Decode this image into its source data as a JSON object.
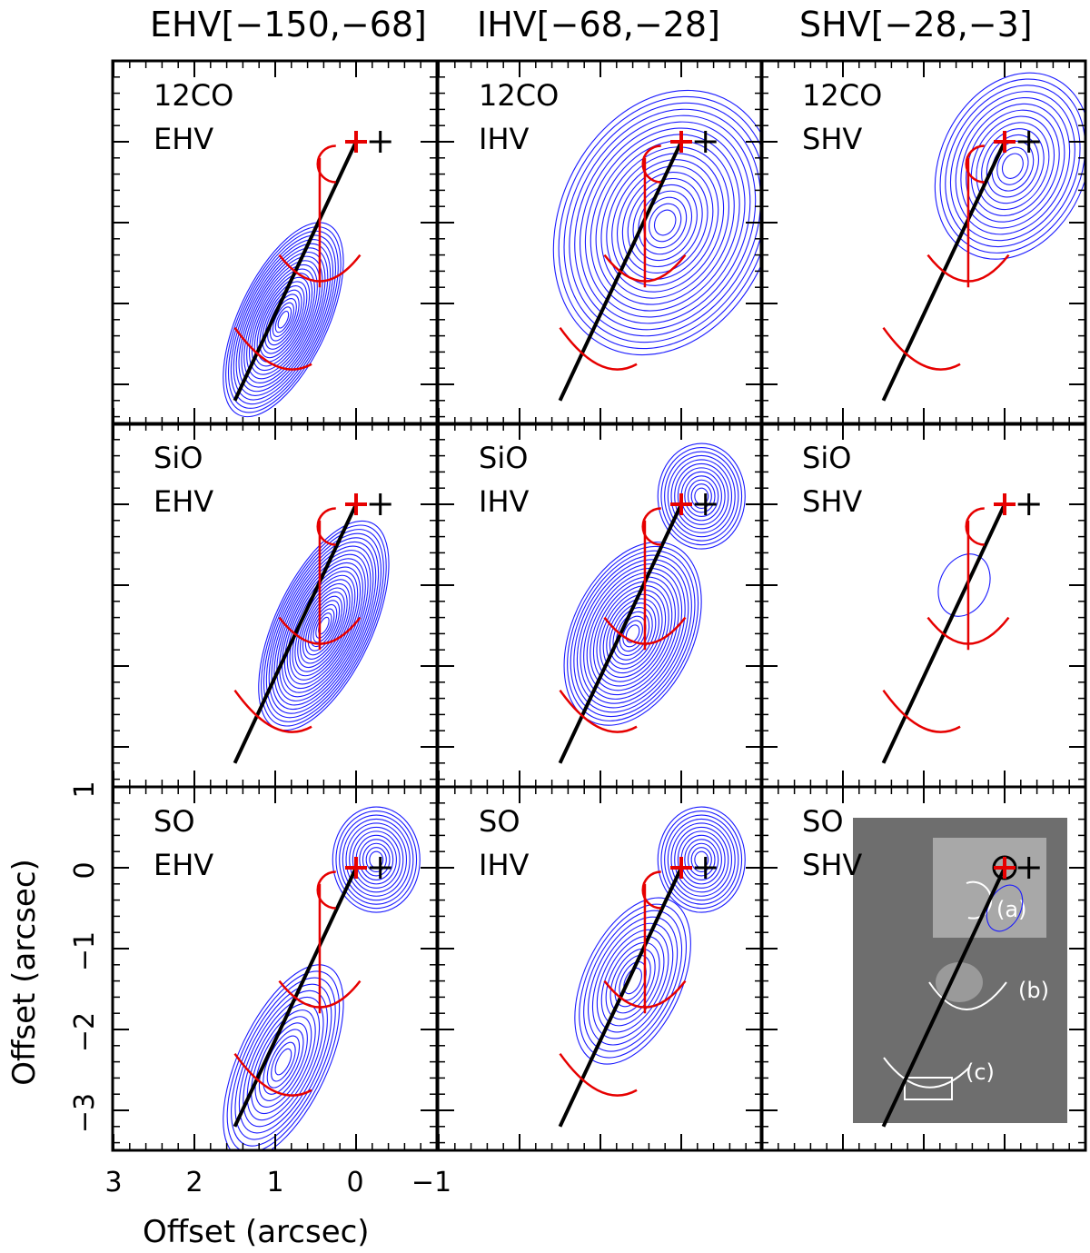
{
  "chart_data": {
    "type": "contour",
    "column_titles": [
      "EHV[−150,−68]",
      "IHV[−68,−28]",
      "SHV[−28,−3]"
    ],
    "panels": [
      {
        "row": 0,
        "col": 0,
        "molecule": "12CO",
        "velocity": "EHV",
        "peak": {
          "x": 0.9,
          "y": -2.2
        },
        "spread": {
          "a": 1.3,
          "b": 0.55
        },
        "levels": 22
      },
      {
        "row": 0,
        "col": 1,
        "molecule": "12CO",
        "velocity": "IHV",
        "peak": {
          "x": 0.2,
          "y": -1.0
        },
        "spread": {
          "a": 1.7,
          "b": 1.3
        },
        "levels": 20
      },
      {
        "row": 0,
        "col": 2,
        "molecule": "12CO",
        "velocity": "SHV",
        "peak": {
          "x": -0.1,
          "y": -0.3
        },
        "spread": {
          "a": 1.2,
          "b": 0.9
        },
        "levels": 14
      },
      {
        "row": 1,
        "col": 0,
        "molecule": "SiO",
        "velocity": "EHV",
        "peak": {
          "x": 0.4,
          "y": -1.5
        },
        "spread": {
          "a": 1.4,
          "b": 0.6
        },
        "levels": 24
      },
      {
        "row": 1,
        "col": 1,
        "molecule": "SiO",
        "velocity": "IHV",
        "peak": {
          "x": 0.6,
          "y": -1.6
        },
        "spread": {
          "a": 1.2,
          "b": 0.75
        },
        "levels": 20
      },
      {
        "row": 1,
        "col": 2,
        "molecule": "SiO",
        "velocity": "SHV",
        "peak": {
          "x": 0.5,
          "y": -1.0
        },
        "spread": {
          "a": 0.4,
          "b": 0.3
        },
        "levels": 1
      },
      {
        "row": 2,
        "col": 0,
        "molecule": "SO",
        "velocity": "EHV",
        "peak": {
          "x": 0.9,
          "y": -2.4
        },
        "spread": {
          "a": 1.3,
          "b": 0.55
        },
        "levels": 14
      },
      {
        "row": 2,
        "col": 1,
        "molecule": "SO",
        "velocity": "IHV",
        "peak": {
          "x": 0.6,
          "y": -1.4
        },
        "spread": {
          "a": 1.1,
          "b": 0.6
        },
        "levels": 12
      },
      {
        "row": 2,
        "col": 2,
        "molecule": "SO",
        "velocity": "SHV",
        "peak": {
          "x": 0.0,
          "y": -0.5
        },
        "spread": {
          "a": 0.3,
          "b": 0.2
        },
        "levels": 1
      }
    ],
    "source_position": {
      "x": 0.0,
      "y": 0.0
    },
    "companion_position": {
      "x": -0.3,
      "y": 0.0
    },
    "jet_axis": {
      "from": {
        "x": 0.0,
        "y": 0.0
      },
      "to": {
        "x": 1.5,
        "y": -3.2
      }
    },
    "cavity_arcs_center_y": [
      -0.5,
      -1.8,
      -2.7
    ],
    "inset_labels": [
      "(a)",
      "(b)",
      "(c)"
    ],
    "x_axis": {
      "label": "Offset (arcsec)",
      "range": [
        3,
        -1
      ],
      "ticks": [
        3,
        2,
        1,
        0,
        -1
      ],
      "tick_labels": [
        "3",
        "2",
        "1",
        "0",
        "−1"
      ]
    },
    "y_axis": {
      "label": "Offset (arcsec)",
      "range": [
        -3.5,
        1.0
      ],
      "ticks": [
        1,
        0,
        -1,
        -2,
        -3
      ],
      "tick_labels": [
        "1",
        "0",
        "−1",
        "−2",
        "−3"
      ]
    },
    "colors": {
      "contour": "#1a1aff",
      "model": "#e60000",
      "axis_line": "#000000"
    }
  }
}
